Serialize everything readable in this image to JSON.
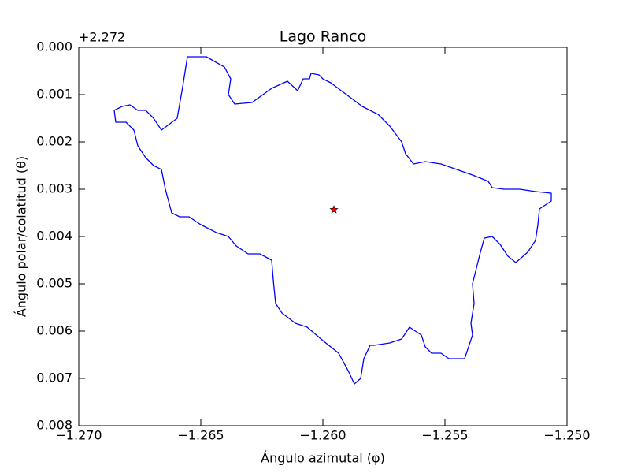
{
  "chart_data": {
    "type": "line",
    "title": "Lago Ranco",
    "xlabel": "Ángulo azimutal (φ)",
    "ylabel": "Ángulo polar/colatitud (θ)",
    "y_offset_label": "+2.272",
    "xlim": [
      -1.27,
      -1.25
    ],
    "ylim": [
      0.008,
      0.0
    ],
    "xticks": [
      {
        "value": -1.27,
        "label": "−1.270"
      },
      {
        "value": -1.265,
        "label": "−1.265"
      },
      {
        "value": -1.26,
        "label": "−1.260"
      },
      {
        "value": -1.255,
        "label": "−1.255"
      },
      {
        "value": -1.25,
        "label": "−1.250"
      }
    ],
    "yticks": [
      {
        "value": 0.0,
        "label": "0.000"
      },
      {
        "value": 0.001,
        "label": "0.001"
      },
      {
        "value": 0.002,
        "label": "0.002"
      },
      {
        "value": 0.003,
        "label": "0.003"
      },
      {
        "value": 0.004,
        "label": "0.004"
      },
      {
        "value": 0.005,
        "label": "0.005"
      },
      {
        "value": 0.006,
        "label": "0.006"
      },
      {
        "value": 0.007,
        "label": "0.007"
      },
      {
        "value": 0.008,
        "label": "0.008"
      }
    ],
    "grid": false,
    "series": [
      {
        "color": "#0000ff",
        "marker": "none",
        "x": [
          -1.265548,
          -1.264774,
          -1.264032,
          -1.263774,
          -1.263871,
          -1.263613,
          -1.262903,
          -1.262097,
          -1.261452,
          -1.261032,
          -1.260806,
          -1.260548,
          -1.260484,
          -1.260161,
          -1.26,
          -1.259677,
          -1.259032,
          -1.258387,
          -1.257742,
          -1.257258,
          -1.256774,
          -1.256613,
          -1.25629,
          -1.255806,
          -1.255161,
          -1.254516,
          -1.253871,
          -1.253226,
          -1.253065,
          -1.252581,
          -1.251935,
          -1.25129,
          -1.250645,
          -1.250645,
          -1.251129,
          -1.251194,
          -1.25129,
          -1.251613,
          -1.252097,
          -1.252419,
          -1.252742,
          -1.253065,
          -1.253387,
          -1.253548,
          -1.25371,
          -1.253871,
          -1.253806,
          -1.253935,
          -1.253871,
          -1.254032,
          -1.254194,
          -1.254839,
          -1.255161,
          -1.255548,
          -1.255806,
          -1.255968,
          -1.256452,
          -1.256774,
          -1.257258,
          -1.257903,
          -1.258065,
          -1.258323,
          -1.258452,
          -1.25871,
          -1.258968,
          -1.259355,
          -1.26,
          -1.260645,
          -1.261129,
          -1.261677,
          -1.261935,
          -1.262032,
          -1.262097,
          -1.262581,
          -1.263065,
          -1.263548,
          -1.263871,
          -1.264355,
          -1.265,
          -1.265484,
          -1.265871,
          -1.266194,
          -1.266452,
          -1.266613,
          -1.266935,
          -1.267258,
          -1.267581,
          -1.267742,
          -1.268065,
          -1.268484,
          -1.268548,
          -1.268226,
          -1.267903,
          -1.267581,
          -1.267258,
          -1.266935,
          -1.266613,
          -1.265968,
          -1.265742,
          -1.265548
        ],
        "values": [
          0.0002,
          0.0002,
          0.000417,
          0.000667,
          0.001,
          0.0012,
          0.001167,
          0.000867,
          0.000717,
          0.000917,
          0.000667,
          0.000667,
          0.00055,
          0.000583,
          0.000667,
          0.00075,
          0.001,
          0.00125,
          0.001417,
          0.001667,
          0.002,
          0.00225,
          0.002467,
          0.002417,
          0.002467,
          0.002583,
          0.0027,
          0.002833,
          0.002967,
          0.003,
          0.003,
          0.00305,
          0.003083,
          0.00325,
          0.003417,
          0.00375,
          0.004083,
          0.004333,
          0.00455,
          0.004417,
          0.004167,
          0.004,
          0.004033,
          0.004333,
          0.004667,
          0.005,
          0.005417,
          0.005833,
          0.006083,
          0.006333,
          0.006583,
          0.006583,
          0.006467,
          0.006467,
          0.006333,
          0.006083,
          0.005917,
          0.006167,
          0.00625,
          0.0063,
          0.0063,
          0.006583,
          0.007,
          0.007117,
          0.006833,
          0.006467,
          0.0062,
          0.005917,
          0.005833,
          0.005617,
          0.005417,
          0.004917,
          0.0045,
          0.004367,
          0.004367,
          0.0042,
          0.004,
          0.003917,
          0.00375,
          0.003583,
          0.003583,
          0.0035,
          0.003,
          0.002583,
          0.0025,
          0.002333,
          0.002083,
          0.00175,
          0.001583,
          0.001583,
          0.001333,
          0.00125,
          0.001217,
          0.001333,
          0.001333,
          0.0015,
          0.00175,
          0.0015,
          0.000833,
          0.0002
        ]
      },
      {
        "color": "#ff0000",
        "marker": "star",
        "x": [
          -1.259548
        ],
        "values": [
          0.003433
        ]
      }
    ]
  }
}
